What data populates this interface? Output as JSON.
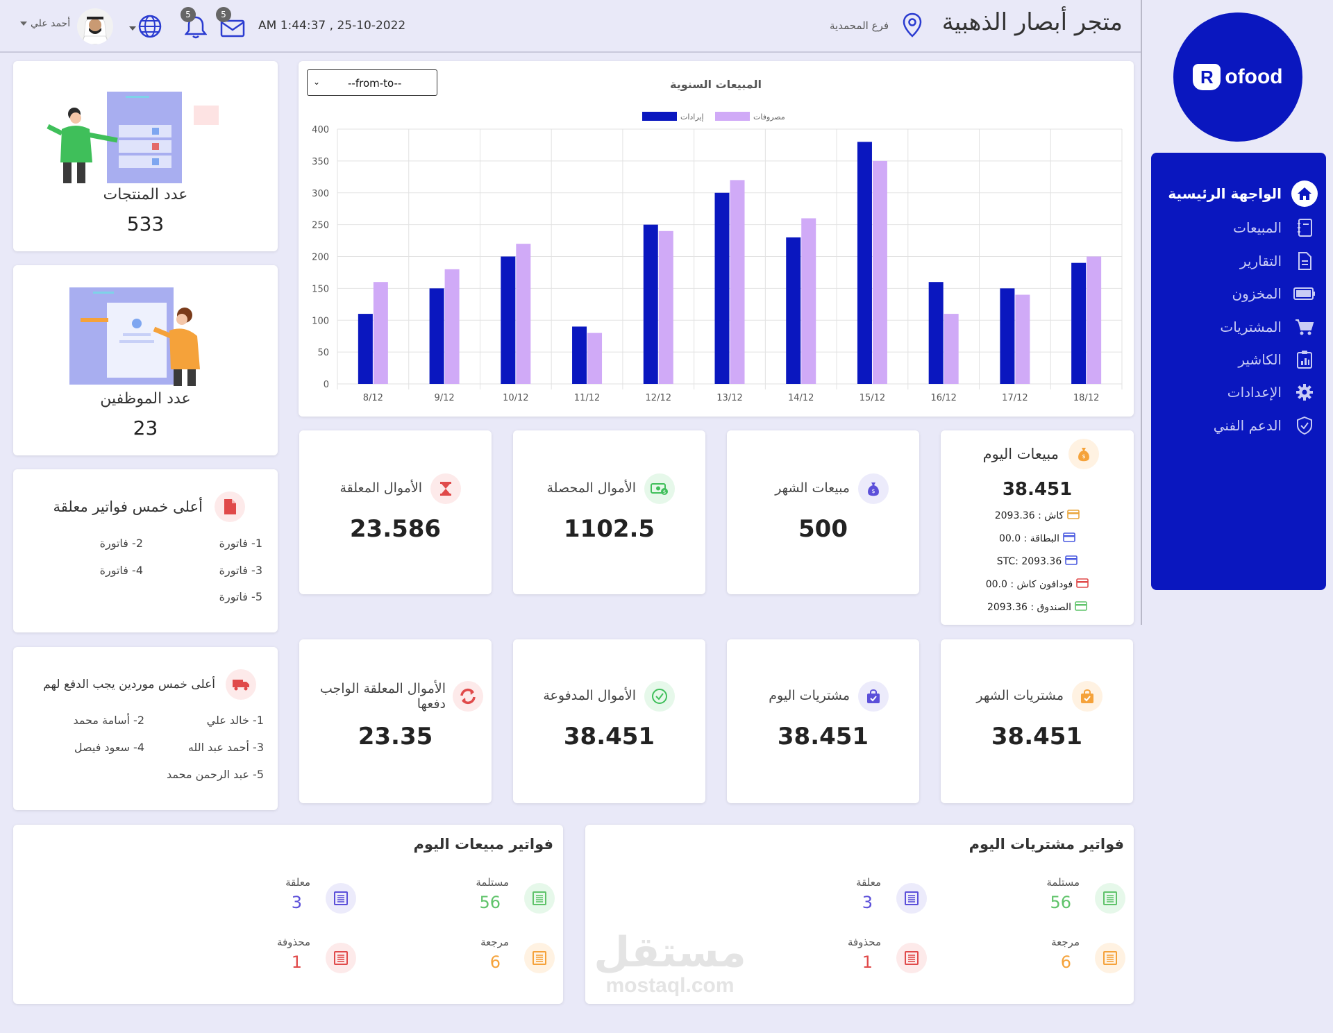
{
  "header": {
    "store_name": "متجر أبصار الذهبية",
    "branch": "فرع المحمدية",
    "datetime": "AM 1:44:37 , 25-10-2022",
    "mail_count": "5",
    "bell_count": "5",
    "user_name": "أحمد علي"
  },
  "brand": {
    "letter": "R",
    "name": "ofood"
  },
  "sidebar": {
    "items": [
      {
        "label": "الواجهة الرئيسية",
        "icon": "home-icon"
      },
      {
        "label": "المبيعات",
        "icon": "book-icon"
      },
      {
        "label": "التقارير",
        "icon": "document-icon"
      },
      {
        "label": "المخزون",
        "icon": "battery-icon"
      },
      {
        "label": "المشتريات",
        "icon": "cart-icon"
      },
      {
        "label": "الكاشير",
        "icon": "clipboard-chart-icon"
      },
      {
        "label": "الإعدادات",
        "icon": "gear-icon"
      },
      {
        "label": "الدعم الفني",
        "icon": "shield-icon"
      }
    ]
  },
  "products": {
    "label": "عدد المنتجات",
    "value": "533"
  },
  "employees": {
    "label": "عدد الموظفين",
    "value": "23"
  },
  "top_invoices": {
    "title": "أعلى خمس فواتير معلقة",
    "items": [
      "1- فاتورة",
      "2- فاتورة",
      "3- فاتورة",
      "4- فاتورة",
      "5- فاتورة"
    ]
  },
  "top_suppliers": {
    "title": "أعلى خمس موردين يجب الدفع لهم",
    "items": [
      "1- خالد علي",
      "2- أسامة محمد",
      "3- أحمد عبد الله",
      "4- سعود فيصل",
      "5- عبد الرحمن محمد"
    ]
  },
  "chart_card": {
    "select_value": "--from-to--"
  },
  "chart_data": {
    "type": "bar",
    "title": "المبيعات السنوية",
    "categories": [
      "8/12",
      "9/12",
      "10/12",
      "11/12",
      "12/12",
      "13/12",
      "14/12",
      "15/12",
      "16/12",
      "17/12",
      "18/12"
    ],
    "series": [
      {
        "name": "إيرادات",
        "color": "#0a17bf",
        "values": [
          110,
          150,
          200,
          90,
          250,
          300,
          230,
          380,
          160,
          150,
          190
        ]
      },
      {
        "name": "مصروفات",
        "color": "#d0aaf7",
        "values": [
          160,
          180,
          220,
          80,
          240,
          320,
          260,
          350,
          110,
          140,
          200
        ]
      }
    ],
    "ylim": [
      0,
      400
    ],
    "yticks": [
      0,
      50,
      100,
      150,
      200,
      250,
      300,
      350,
      400
    ],
    "grid": true,
    "legend": "top"
  },
  "today_sales": {
    "title": "مبيعات اليوم",
    "value": "38.451",
    "lines": [
      {
        "text": "كاش : 2093.36",
        "color": "#e9a53a"
      },
      {
        "text": "البطاقة : 00.0",
        "color": "#4a5ae0"
      },
      {
        "text": "STC: 2093.36",
        "color": "#4a5ae0"
      },
      {
        "text": "فودافون كاش : 00.0",
        "color": "#e04a4a"
      },
      {
        "text": "الصندوق : 2093.36",
        "color": "#5fc36a"
      }
    ]
  },
  "stats_row1": [
    {
      "title": "مبيعات الشهر",
      "value": "500",
      "icon": "money-bag-icon",
      "bg": "#ecebfb",
      "fg": "#5b4fd9"
    },
    {
      "title": "الأموال المحصلة",
      "value": "1102.5",
      "icon": "cash-icon",
      "bg": "#e6f8ea",
      "fg": "#3fbf5a"
    },
    {
      "title": "الأموال المعلقة",
      "value": "23.586",
      "icon": "hourglass-icon",
      "bg": "#fdeaea",
      "fg": "#e04a4a"
    }
  ],
  "stats_row2": [
    {
      "title": "مشتريات الشهر",
      "value": "38.451",
      "icon": "shopping-bag-icon",
      "bg": "#fff2e2",
      "fg": "#f5a23a"
    },
    {
      "title": "مشتريات اليوم",
      "value": "38.451",
      "icon": "shopping-bag-icon",
      "bg": "#ecebfb",
      "fg": "#5b4fd9"
    },
    {
      "title": "الأموال المدفوعة",
      "value": "38.451",
      "icon": "check-circle-icon",
      "bg": "#e6f8ea",
      "fg": "#3fbf5a"
    },
    {
      "title": "الأموال المعلقة الواجب دفعها",
      "value": "23.35",
      "icon": "refresh-icon",
      "bg": "#fdeaea",
      "fg": "#e04a4a"
    }
  ],
  "purchase_invoices": {
    "title": "فواتير مشتريات اليوم",
    "items": [
      {
        "label": "مستلمة",
        "value": "56",
        "color": "#5fc36a",
        "bg": "#e6f8ea"
      },
      {
        "label": "معلقة",
        "value": "3",
        "color": "#5b4fd9",
        "bg": "#ecebfb"
      },
      {
        "label": "مرجعة",
        "value": "6",
        "color": "#f5a23a",
        "bg": "#fff2e2"
      },
      {
        "label": "محذوفة",
        "value": "1",
        "color": "#e04a4a",
        "bg": "#fdeaea"
      }
    ]
  },
  "sales_invoices": {
    "title": "فواتير مبيعات اليوم",
    "items": [
      {
        "label": "مستلمة",
        "value": "56",
        "color": "#5fc36a",
        "bg": "#e6f8ea"
      },
      {
        "label": "معلقة",
        "value": "3",
        "color": "#5b4fd9",
        "bg": "#ecebfb"
      },
      {
        "label": "مرجعة",
        "value": "6",
        "color": "#f5a23a",
        "bg": "#fff2e2"
      },
      {
        "label": "محذوفة",
        "value": "1",
        "color": "#e04a4a",
        "bg": "#fdeaea"
      }
    ]
  },
  "watermark": {
    "arabic": "مستقل",
    "latin": "mostaql.com"
  }
}
